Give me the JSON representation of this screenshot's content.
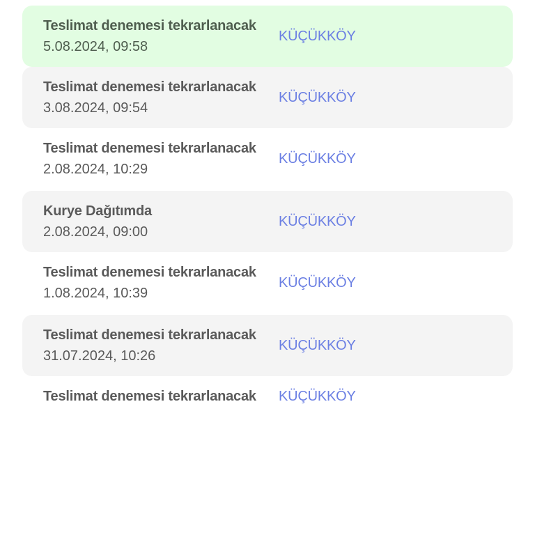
{
  "colors": {
    "highlight_bg": "#e2fde2",
    "alt_bg": "#f4f4f4",
    "location_text": "#6b7fe3",
    "text": "#5a5a5a"
  },
  "events": [
    {
      "status": "Teslimat denemesi tekrarlanacak",
      "datetime": "5.08.2024, 09:58",
      "location": "KÜÇÜKKÖY",
      "style": "green"
    },
    {
      "status": "Teslimat denemesi tekrarlanacak",
      "datetime": "3.08.2024, 09:54",
      "location": "KÜÇÜKKÖY",
      "style": "grey"
    },
    {
      "status": "Teslimat denemesi tekrarlanacak",
      "datetime": "2.08.2024, 10:29",
      "location": "KÜÇÜKKÖY",
      "style": "white"
    },
    {
      "status": "Kurye Dağıtımda",
      "datetime": "2.08.2024, 09:00",
      "location": "KÜÇÜKKÖY",
      "style": "grey"
    },
    {
      "status": "Teslimat denemesi tekrarlanacak",
      "datetime": "1.08.2024, 10:39",
      "location": "KÜÇÜKKÖY",
      "style": "white"
    },
    {
      "status": "Teslimat denemesi tekrarlanacak",
      "datetime": "31.07.2024, 10:26",
      "location": "KÜÇÜKKÖY",
      "style": "grey"
    },
    {
      "status": "Teslimat denemesi tekrarlanacak",
      "datetime": "",
      "location": "KÜÇÜKKÖY",
      "style": "white"
    }
  ]
}
